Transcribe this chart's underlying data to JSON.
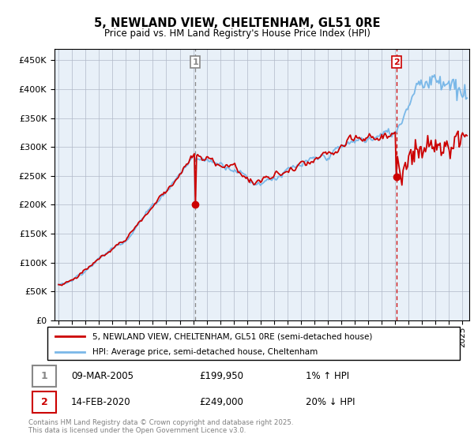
{
  "title": "5, NEWLAND VIEW, CHELTENHAM, GL51 0RE",
  "subtitle": "Price paid vs. HM Land Registry's House Price Index (HPI)",
  "y_ticks": [
    0,
    50000,
    100000,
    150000,
    200000,
    250000,
    300000,
    350000,
    400000,
    450000
  ],
  "ylim": [
    0,
    470000
  ],
  "xlim_start": 1994.7,
  "xlim_end": 2025.5,
  "hpi_color": "#7ab8e8",
  "price_color": "#cc0000",
  "chart_bg": "#e8f0f8",
  "marker1_year": 2005.17,
  "marker1_price": 199950,
  "marker1_label": "09-MAR-2005",
  "marker1_hpi_note": "1% ↑ HPI",
  "marker2_year": 2020.12,
  "marker2_price": 249000,
  "marker2_label": "14-FEB-2020",
  "marker2_hpi_note": "20% ↓ HPI",
  "legend_line1": "5, NEWLAND VIEW, CHELTENHAM, GL51 0RE (semi-detached house)",
  "legend_line2": "HPI: Average price, semi-detached house, Cheltenham",
  "footer": "Contains HM Land Registry data © Crown copyright and database right 2025.\nThis data is licensed under the Open Government Licence v3.0.",
  "background_color": "#ffffff",
  "grid_color": "#b0b8c8"
}
